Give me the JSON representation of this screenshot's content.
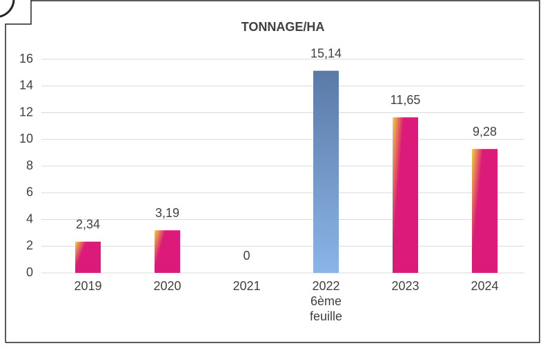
{
  "chart_data": {
    "type": "bar",
    "title": "TONNAGE/HA",
    "categories": [
      "2019",
      "2020",
      "2021",
      "2022\n6ème\nfeuille",
      "2023",
      "2024"
    ],
    "values": [
      2.34,
      3.19,
      0,
      15.14,
      11.65,
      9.28
    ],
    "value_labels": [
      "2,34",
      "3,19",
      "0",
      "15,14",
      "11,65",
      "9,28"
    ],
    "colors": [
      "#dc1a7a",
      "#dc1a7a",
      "#dc1a7a",
      "#5b7aa6",
      "#dc1a7a",
      "#dc1a7a"
    ],
    "ylim": [
      0,
      16
    ],
    "yticks": [
      0,
      2,
      4,
      6,
      8,
      10,
      12,
      14,
      16
    ],
    "grid": true
  }
}
